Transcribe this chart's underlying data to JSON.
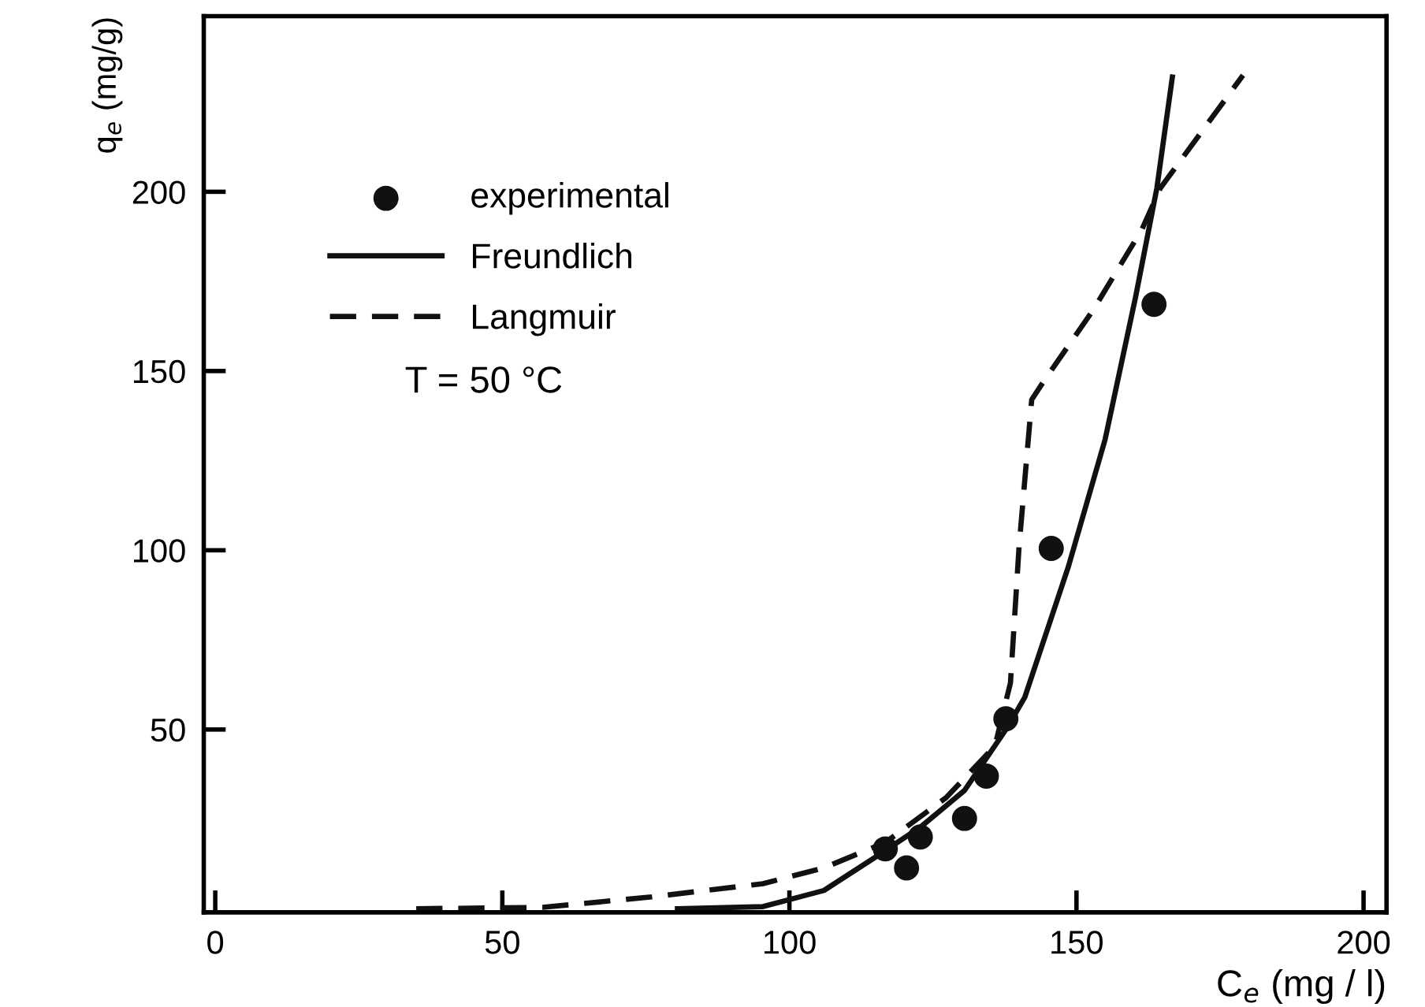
{
  "chart_data": {
    "type": "scatter",
    "xlabel": "C$_{e}$ (mg / l)",
    "ylabel": "q$_{e}$ (mg/g)",
    "xlim": [
      -2,
      204
    ],
    "ylim": [
      -1,
      249
    ],
    "xticks": [
      0,
      50,
      100,
      150,
      200
    ],
    "yticks": [
      50,
      100,
      150,
      200
    ],
    "grid": false,
    "legend": "top left",
    "annotations": [
      "T = 50 °C"
    ],
    "series": [
      {
        "name": "experimental",
        "marker": "circle",
        "color": "#111111",
        "x": [
          116.7,
          120.4,
          122.8,
          130.5,
          134.3,
          137.7,
          145.6,
          163.5
        ],
        "values": [
          16.7,
          11.4,
          20,
          25.2,
          37,
          53,
          100.5,
          168.6
        ]
      },
      {
        "name": "Freundlich",
        "type": "line",
        "line_style": "solid",
        "color": "#111111",
        "x": [
          80.5,
          95.4,
          106,
          114.6,
          123,
          130.5,
          138,
          141,
          148.6,
          155,
          160.3,
          164,
          166.7
        ],
        "values": [
          0,
          0.6,
          5.1,
          14,
          23,
          33,
          50.7,
          59,
          95.5,
          131,
          170.7,
          201,
          232
        ]
      },
      {
        "name": "Langmuir",
        "type": "line",
        "line_style": "dashed",
        "color": "#111111",
        "x": [
          35,
          57,
          76,
          95.4,
          106,
          116.7,
          127.3,
          135.8,
          138.5,
          140,
          142.2,
          144.4,
          152.9,
          161.4,
          164.6,
          179
        ],
        "values": [
          0,
          0.4,
          3.3,
          7,
          11.4,
          18.5,
          31,
          45.4,
          63,
          101,
          142,
          147.4,
          167,
          189.5,
          201,
          232.5
        ]
      }
    ]
  }
}
